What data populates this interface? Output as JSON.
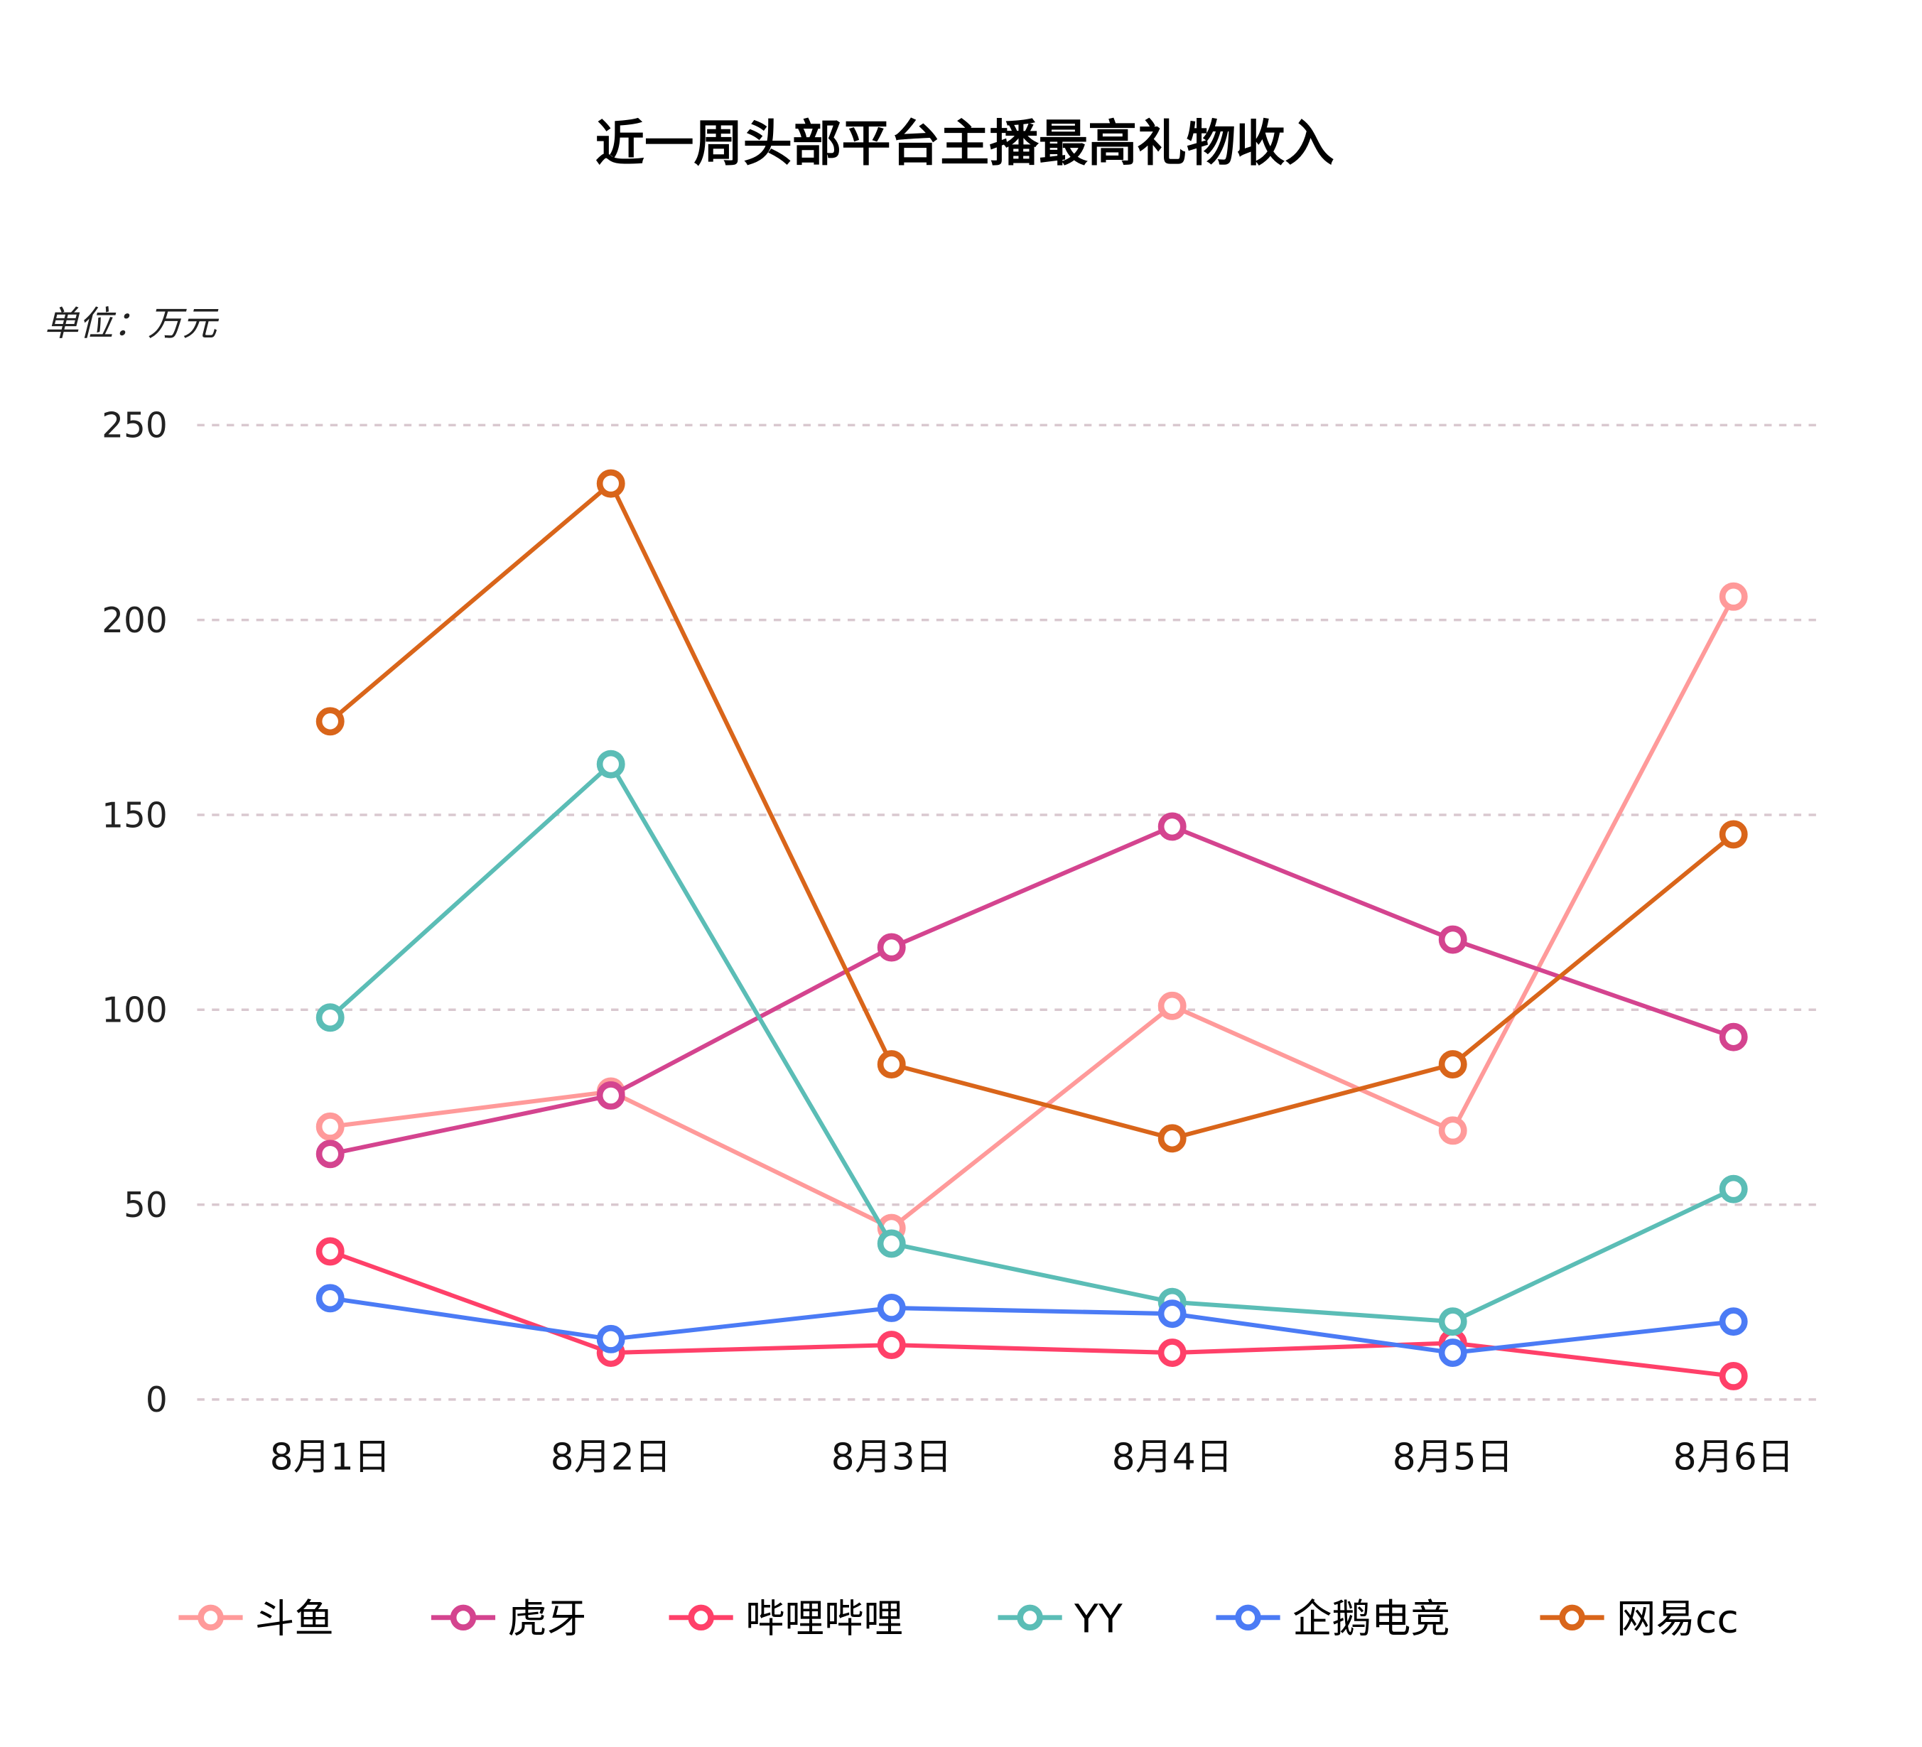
{
  "chart_data": {
    "type": "line",
    "title": "近一周头部平台主播最高礼物收入",
    "unit_label": "单位：万元",
    "categories": [
      "8月1日",
      "8月2日",
      "8月3日",
      "8月4日",
      "8月5日",
      "8月6日"
    ],
    "ylim": [
      0,
      250
    ],
    "yticks": [
      0,
      50,
      100,
      150,
      200,
      250
    ],
    "grid": true,
    "legend": "bottom",
    "series": [
      {
        "name": "斗鱼",
        "color": "#FF9A9A",
        "values": [
          70,
          79,
          44,
          101,
          69,
          206
        ]
      },
      {
        "name": "虎牙",
        "color": "#D4448F",
        "values": [
          63,
          78,
          116,
          147,
          118,
          93
        ]
      },
      {
        "name": "哔哩哔哩",
        "color": "#FF4069",
        "values": [
          38,
          12,
          14,
          12,
          14.5,
          6
        ]
      },
      {
        "name": "YY",
        "color": "#5BBDB6",
        "values": [
          98,
          163,
          40,
          25,
          20,
          54
        ]
      },
      {
        "name": "企鹅电竞",
        "color": "#4B7BF5",
        "values": [
          26,
          15.5,
          23.5,
          22,
          12,
          20
        ]
      },
      {
        "name": "网易cc",
        "color": "#D9651A",
        "values": [
          174,
          235,
          86,
          67,
          86,
          145
        ]
      }
    ]
  }
}
